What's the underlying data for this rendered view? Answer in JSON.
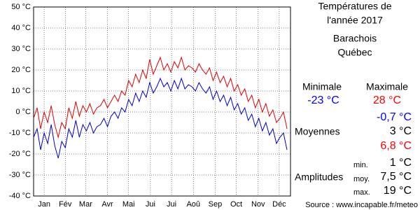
{
  "chart_data": {
    "type": "line",
    "xlim": [
      0,
      365
    ],
    "xticks": [
      {
        "value": 15,
        "label": "Jan"
      },
      {
        "value": 45,
        "label": "Fév"
      },
      {
        "value": 74,
        "label": "Mar"
      },
      {
        "value": 105,
        "label": "Avr"
      },
      {
        "value": 135,
        "label": "Mai"
      },
      {
        "value": 166,
        "label": "Jui"
      },
      {
        "value": 196,
        "label": "Jui"
      },
      {
        "value": 227,
        "label": "Aoû"
      },
      {
        "value": 258,
        "label": "Sep"
      },
      {
        "value": 288,
        "label": "Oct"
      },
      {
        "value": 319,
        "label": "Nov"
      },
      {
        "value": 349,
        "label": "Déc"
      }
    ],
    "ylim": [
      -40,
      50
    ],
    "yticks": [
      {
        "value": -40,
        "label": "-40 °C"
      },
      {
        "value": -30,
        "label": "-30 °C"
      },
      {
        "value": -20,
        "label": "-20 °C"
      },
      {
        "value": -10,
        "label": "-10 °C"
      },
      {
        "value": 0,
        "label": "0 °C"
      },
      {
        "value": 10,
        "label": "10 °C"
      },
      {
        "value": 20,
        "label": "20 °C"
      },
      {
        "value": 30,
        "label": "30 °C"
      },
      {
        "value": 40,
        "label": "40 °C"
      },
      {
        "value": 50,
        "label": "50 °C"
      }
    ],
    "grid": true,
    "x": [
      0,
      5,
      10,
      15,
      20,
      25,
      30,
      35,
      40,
      45,
      50,
      55,
      60,
      65,
      70,
      75,
      80,
      85,
      90,
      95,
      100,
      105,
      110,
      115,
      120,
      125,
      130,
      135,
      140,
      145,
      150,
      155,
      160,
      165,
      170,
      175,
      180,
      185,
      190,
      195,
      200,
      205,
      210,
      215,
      220,
      225,
      230,
      235,
      240,
      245,
      250,
      255,
      260,
      265,
      270,
      275,
      280,
      285,
      290,
      295,
      300,
      305,
      310,
      315,
      320,
      325,
      330,
      335,
      340,
      345,
      350,
      355,
      360
    ],
    "series": [
      {
        "color": "#e00000",
        "values": [
          -3,
          2,
          -8,
          0,
          -5,
          3,
          -6,
          -12,
          -5,
          -8,
          2,
          -3,
          5,
          -2,
          3,
          0,
          4,
          -1,
          2,
          3,
          6,
          2,
          5,
          8,
          5,
          10,
          8,
          15,
          12,
          18,
          14,
          20,
          16,
          25,
          18,
          22,
          26,
          20,
          23,
          19,
          24,
          21,
          26,
          20,
          22,
          21,
          19,
          23,
          20,
          18,
          21,
          15,
          19,
          14,
          17,
          12,
          16,
          10,
          13,
          8,
          11,
          5,
          8,
          2,
          6,
          0,
          4,
          -2,
          1,
          -5,
          -3,
          0,
          -8
        ]
      },
      {
        "color": "#0000cc",
        "values": [
          -12,
          -8,
          -18,
          -10,
          -15,
          -6,
          -16,
          -22,
          -14,
          -17,
          -8,
          -12,
          -4,
          -12,
          -6,
          -9,
          -5,
          -10,
          -7,
          -6,
          -3,
          -7,
          -2,
          0,
          -3,
          2,
          0,
          6,
          3,
          9,
          5,
          10,
          7,
          14,
          9,
          12,
          16,
          12,
          14,
          10,
          15,
          11,
          16,
          11,
          13,
          12,
          10,
          14,
          11,
          9,
          12,
          6,
          10,
          5,
          8,
          3,
          7,
          1,
          4,
          -1,
          2,
          -4,
          -1,
          -7,
          -3,
          -9,
          -5,
          -11,
          -8,
          -15,
          -12,
          -10,
          -18
        ]
      }
    ]
  },
  "panel": {
    "title": [
      "Températures de",
      "l'année 2017"
    ],
    "place": [
      "Barachois",
      "Québec"
    ],
    "min_header": "Minimale",
    "max_header": "Maximale",
    "min": "-23 °C",
    "max": "28 °C",
    "moyennes_label": "Moyennes",
    "moyennes": [
      "-0,7 °C",
      "3 °C",
      "6,8 °C"
    ],
    "amplitudes_label": "Amplitudes",
    "amp_names": [
      "min.",
      "moy.",
      "max."
    ],
    "amplitudes": [
      "1 °C",
      "7,5 °C",
      "19 °C"
    ],
    "source": "Source : www.incapable.fr/meteo"
  }
}
